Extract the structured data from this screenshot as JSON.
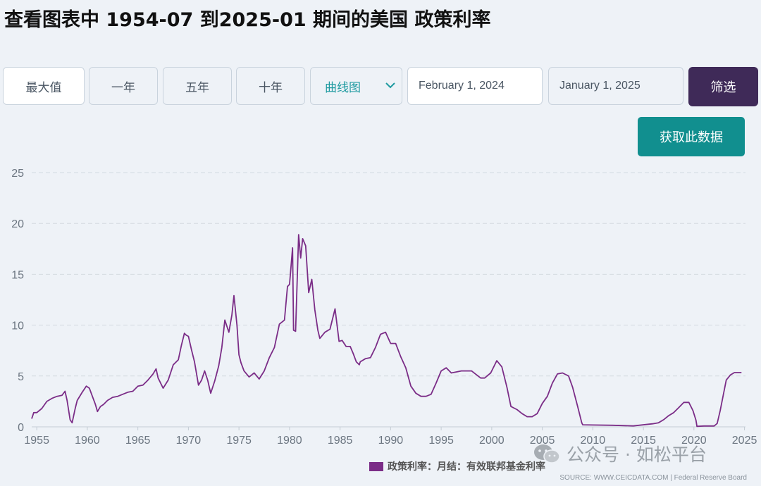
{
  "title": "查看图表中 1954-07 到2025-01 期间的美国 政策利率",
  "toolbar": {
    "max_label": "最大值",
    "one_year_label": "一年",
    "five_year_label": "五年",
    "ten_year_label": "十年",
    "chart_type_selected": "曲线图",
    "start_date": "February 1, 2024",
    "end_date": "January 1, 2025",
    "filter_label": "筛选"
  },
  "get_data_label": "获取此数据",
  "legend": {
    "label": "政策利率：月结：有效联邦基金利率"
  },
  "source": "SOURCE: WWW.CEICDATA.COM | Federal Reserve Board",
  "watermark": "公众号 · 如松平台",
  "colors": {
    "series": "#7b2d87",
    "filter_button": "#3f2a58",
    "get_data_button": "#118f8f",
    "select_text": "#1e9aa0",
    "background": "#eef2f7"
  },
  "icons": {
    "dropdown": "chevron-down-icon",
    "watermark": "wechat-icon"
  },
  "chart_data": {
    "type": "line",
    "title": "",
    "xlabel": "",
    "ylabel": "",
    "xlim": [
      1954.5,
      2025.1
    ],
    "ylim": [
      0,
      25
    ],
    "x_ticks": [
      "1955",
      "1960",
      "1965",
      "1970",
      "1975",
      "1980",
      "1985",
      "1990",
      "1995",
      "2000",
      "2005",
      "2010",
      "2015",
      "2020",
      "2025"
    ],
    "y_ticks": [
      "0",
      "5",
      "10",
      "15",
      "20",
      "25"
    ],
    "grid": "horizontal-dashed",
    "legend_position": "bottom-center",
    "series": [
      {
        "name": "政策利率：月结：有效联邦基金利率",
        "x": [
          1954.5,
          1954.7,
          1955.0,
          1955.5,
          1956.0,
          1956.5,
          1957.0,
          1957.5,
          1957.8,
          1958.0,
          1958.3,
          1958.5,
          1958.8,
          1959.0,
          1959.5,
          1959.9,
          1960.2,
          1960.5,
          1960.8,
          1961.0,
          1961.3,
          1961.6,
          1962.0,
          1962.5,
          1963.0,
          1963.5,
          1964.0,
          1964.5,
          1965.0,
          1965.5,
          1966.0,
          1966.5,
          1966.8,
          1967.0,
          1967.5,
          1968.0,
          1968.5,
          1969.0,
          1969.3,
          1969.6,
          1969.8,
          1970.0,
          1970.3,
          1970.6,
          1971.0,
          1971.3,
          1971.6,
          1971.9,
          1972.2,
          1972.6,
          1973.0,
          1973.3,
          1973.6,
          1974.0,
          1974.3,
          1974.5,
          1974.8,
          1975.0,
          1975.2,
          1975.5,
          1976.0,
          1976.5,
          1977.0,
          1977.5,
          1978.0,
          1978.5,
          1979.0,
          1979.5,
          1979.8,
          1980.0,
          1980.3,
          1980.4,
          1980.6,
          1980.9,
          1981.1,
          1981.3,
          1981.6,
          1981.9,
          1982.2,
          1982.5,
          1982.8,
          1983.0,
          1983.5,
          1984.0,
          1984.5,
          1984.9,
          1985.2,
          1985.6,
          1986.0,
          1986.3,
          1986.6,
          1986.9,
          1987.0,
          1987.5,
          1988.0,
          1988.5,
          1989.0,
          1989.5,
          1990.0,
          1990.5,
          1991.0,
          1991.5,
          1992.0,
          1992.5,
          1993.0,
          1993.5,
          1994.0,
          1994.5,
          1995.0,
          1995.5,
          1996.0,
          1997.0,
          1998.0,
          1998.9,
          1999.3,
          1999.9,
          2000.5,
          2001.0,
          2001.5,
          2001.9,
          2002.5,
          2003.0,
          2003.5,
          2004.0,
          2004.5,
          2005.0,
          2005.5,
          2006.0,
          2006.5,
          2007.0,
          2007.6,
          2008.0,
          2008.5,
          2008.9,
          2009.0,
          2010.0,
          2012.0,
          2014.0,
          2015.9,
          2016.5,
          2017.0,
          2017.5,
          2018.0,
          2018.5,
          2019.0,
          2019.5,
          2019.9,
          2020.2,
          2020.3,
          2021.0,
          2022.0,
          2022.3,
          2022.6,
          2022.9,
          2023.2,
          2023.6,
          2024.0,
          2024.5,
          2024.7
        ],
        "values": [
          0.8,
          1.4,
          1.4,
          1.8,
          2.5,
          2.8,
          3.0,
          3.1,
          3.5,
          2.6,
          0.7,
          0.4,
          1.8,
          2.6,
          3.4,
          4.0,
          3.8,
          3.0,
          2.2,
          1.5,
          2.0,
          2.2,
          2.6,
          2.9,
          3.0,
          3.2,
          3.4,
          3.5,
          4.0,
          4.1,
          4.6,
          5.2,
          5.7,
          4.8,
          3.8,
          4.6,
          6.1,
          6.6,
          8.0,
          9.2,
          9.0,
          8.9,
          7.6,
          6.4,
          4.1,
          4.6,
          5.5,
          4.6,
          3.3,
          4.5,
          6.0,
          7.8,
          10.5,
          9.3,
          11.0,
          12.9,
          10.0,
          7.1,
          6.3,
          5.5,
          4.9,
          5.3,
          4.7,
          5.5,
          6.8,
          7.8,
          10.1,
          10.5,
          13.8,
          14.0,
          17.6,
          9.5,
          9.4,
          18.9,
          16.6,
          18.5,
          17.8,
          13.2,
          14.5,
          11.5,
          9.5,
          8.7,
          9.3,
          9.6,
          11.6,
          8.4,
          8.5,
          7.9,
          7.9,
          7.2,
          6.4,
          6.1,
          6.4,
          6.7,
          6.8,
          7.8,
          9.1,
          9.3,
          8.2,
          8.2,
          6.9,
          5.8,
          4.0,
          3.3,
          3.0,
          3.0,
          3.2,
          4.3,
          5.5,
          5.8,
          5.3,
          5.5,
          5.5,
          4.8,
          4.8,
          5.3,
          6.5,
          5.9,
          3.9,
          2.0,
          1.7,
          1.3,
          1.0,
          1.0,
          1.3,
          2.3,
          3.0,
          4.3,
          5.2,
          5.3,
          5.0,
          3.9,
          2.0,
          0.4,
          0.2,
          0.18,
          0.15,
          0.09,
          0.3,
          0.4,
          0.7,
          1.1,
          1.4,
          1.9,
          2.4,
          2.4,
          1.6,
          0.65,
          0.05,
          0.08,
          0.08,
          0.33,
          1.6,
          3.1,
          4.6,
          5.1,
          5.33,
          5.33,
          5.33
        ]
      }
    ]
  }
}
